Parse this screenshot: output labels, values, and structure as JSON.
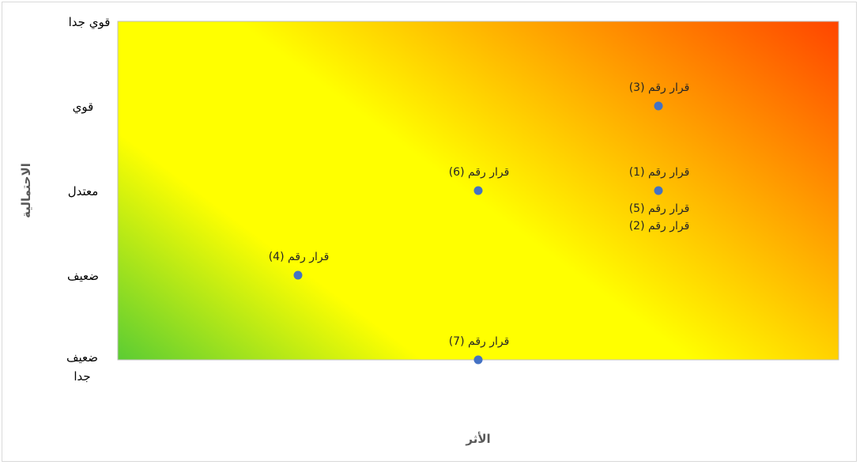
{
  "chart_data": {
    "type": "scatter",
    "title": "",
    "xlabel": "الأثر",
    "ylabel": "الاحتمالية",
    "xlim": [
      0,
      4
    ],
    "ylim": [
      1,
      5
    ],
    "yticks": [
      {
        "value": 5,
        "label": "قوي جدا"
      },
      {
        "value": 4,
        "label": "قوي"
      },
      {
        "value": 3,
        "label": "معتدل"
      },
      {
        "value": 2,
        "label": "ضعيف"
      },
      {
        "value": 1,
        "label": "ضعيف جدا"
      }
    ],
    "background": "risk gradient: green (bottom-left) to yellow to red (top-right)",
    "colors": {
      "green": "#00b050",
      "yellow": "#ffff00",
      "orange": "#ff9a00",
      "red": "#ff1a00",
      "point": "#4472c4"
    },
    "points": [
      {
        "x": 3,
        "y": 4,
        "labels": [
          "قرار رقم (3)"
        ]
      },
      {
        "x": 3,
        "y": 3,
        "labels": [
          "قرار رقم (1)",
          "قرار رقم (5)",
          "قرار رقم (2)"
        ]
      },
      {
        "x": 2,
        "y": 3,
        "labels": [
          "قرار رقم (6)"
        ]
      },
      {
        "x": 1,
        "y": 2,
        "labels": [
          "قرار رقم (4)"
        ]
      },
      {
        "x": 2,
        "y": 1,
        "labels": [
          "قرار رقم (7)"
        ]
      }
    ]
  }
}
